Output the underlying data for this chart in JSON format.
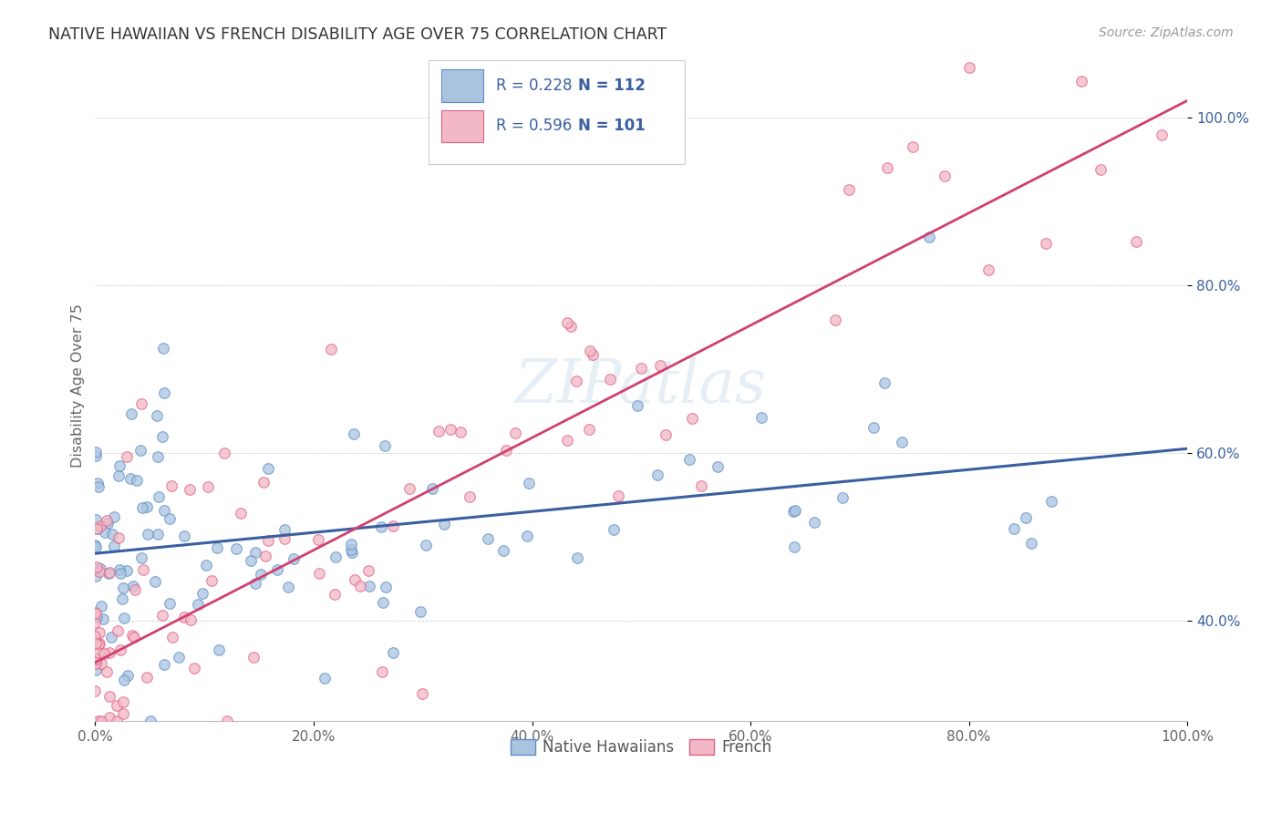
{
  "title": "NATIVE HAWAIIAN VS FRENCH DISABILITY AGE OVER 75 CORRELATION CHART",
  "source": "Source: ZipAtlas.com",
  "ylabel": "Disability Age Over 75",
  "xlim": [
    0,
    1
  ],
  "ylim": [
    0.28,
    1.08
  ],
  "ytick_labels": [
    "40.0%",
    "60.0%",
    "80.0%",
    "100.0%"
  ],
  "ytick_values": [
    0.4,
    0.6,
    0.8,
    1.0
  ],
  "xtick_labels": [
    "0.0%",
    "20.0%",
    "40.0%",
    "60.0%",
    "80.0%",
    "100.0%"
  ],
  "xtick_values": [
    0.0,
    0.2,
    0.4,
    0.6,
    0.8,
    1.0
  ],
  "blue_R": 0.228,
  "blue_N": 112,
  "pink_R": 0.596,
  "pink_N": 101,
  "blue_color": "#aac4e0",
  "pink_color": "#f2b8c6",
  "blue_edge_color": "#5b8dc8",
  "pink_edge_color": "#e06080",
  "blue_line_color": "#3a5fa0",
  "pink_line_color": "#d04070",
  "legend_label_blue": "Native Hawaiians",
  "legend_label_pink": "French",
  "watermark": "ZIPatlas",
  "title_color": "#333333",
  "source_color": "#999999",
  "blue_line_start_y": 0.48,
  "blue_line_end_y": 0.605,
  "pink_line_start_y": 0.35,
  "pink_line_end_y": 1.02
}
